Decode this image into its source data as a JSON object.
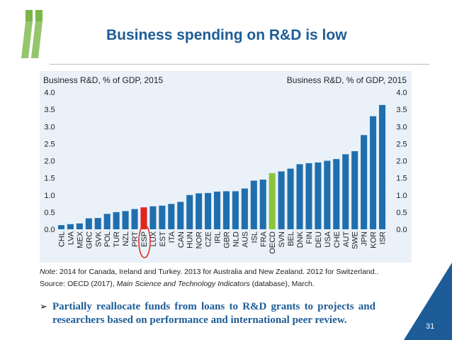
{
  "slide": {
    "title": "Business spending on R&D is low",
    "page_number": "31",
    "note_label": "Note",
    "note_text": ": 2014 for Canada, Ireland and Turkey. 2013 for Australia and New Zealand. 2012 for Switzerland..",
    "source_prefix": "Source: OECD (2017), ",
    "source_title": "Main Science and Technology Indicators",
    "source_suffix": " (database), March.",
    "bullet_icon": "arrow-bullet-icon",
    "bullet_text": "Partially reallocate funds from loans to R&D grants to projects and researchers based on performance and international peer review."
  },
  "colors": {
    "title": "#1d5c96",
    "bar": "#1f6fae",
    "highlight_esp": "#e0261d",
    "highlight_oecd": "#8ac53f",
    "panel": "#eaf1f9",
    "logo": "#7ab648",
    "corner": "#1d5c96"
  },
  "chart_data": {
    "type": "bar",
    "title_left": "Business R&D, % of GDP, 2015",
    "title_right": "Business R&D, % of GDP, 2015",
    "categories": [
      "CHL",
      "LVA",
      "MEX",
      "GRC",
      "SVK",
      "POL",
      "TUR",
      "NZL",
      "PRT",
      "ESP",
      "LUX",
      "EST",
      "ITA",
      "CAN",
      "HUN",
      "NOR",
      "CZE",
      "IRL",
      "GBR",
      "NLD",
      "AUS",
      "ISL",
      "FRA",
      "OECD",
      "SVN",
      "BEL",
      "DNK",
      "FIN",
      "DEU",
      "USA",
      "CHE",
      "AUT",
      "SWE",
      "JPN",
      "KOR",
      "ISR"
    ],
    "values": [
      0.12,
      0.15,
      0.17,
      0.32,
      0.33,
      0.45,
      0.5,
      0.53,
      0.59,
      0.64,
      0.67,
      0.69,
      0.74,
      0.8,
      1.0,
      1.05,
      1.06,
      1.1,
      1.11,
      1.11,
      1.19,
      1.42,
      1.45,
      1.64,
      1.69,
      1.77,
      1.9,
      1.93,
      1.95,
      2.0,
      2.05,
      2.19,
      2.28,
      2.75,
      3.3,
      3.63
    ],
    "highlight": {
      "ESP": "red",
      "OECD": "green"
    },
    "yticks": [
      "0.0",
      "0.5",
      "1.0",
      "1.5",
      "2.0",
      "2.5",
      "3.0",
      "3.5",
      "4.0"
    ],
    "ylim": [
      0,
      4.0
    ],
    "xlabel": "",
    "ylabel": "",
    "esp_circled": true
  }
}
